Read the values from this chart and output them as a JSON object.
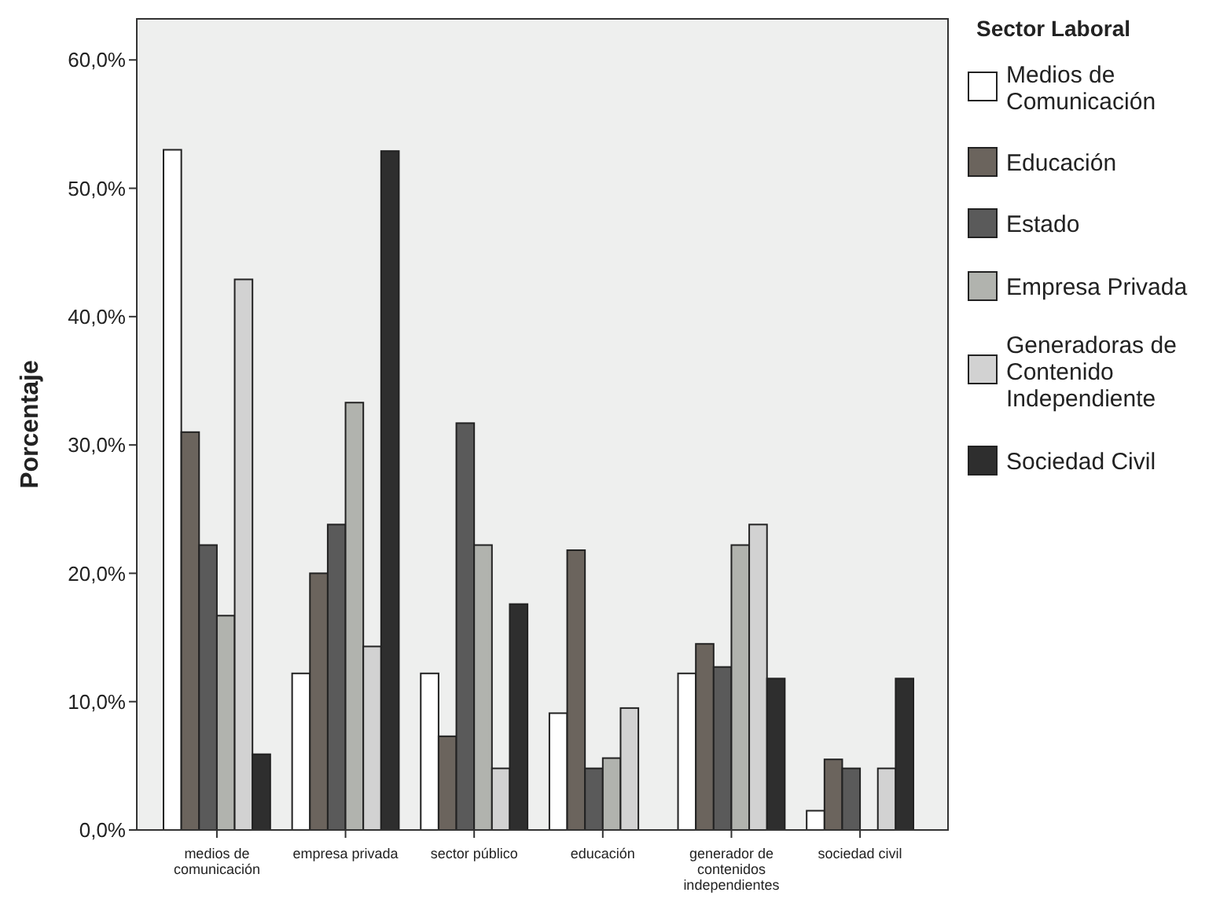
{
  "chart_data": {
    "type": "bar",
    "ylabel": "Porcentaje",
    "legend_title": "Sector Laboral",
    "legend": "right",
    "categories": [
      "medios de comunicación",
      "empresa privada",
      "sector público",
      "educación",
      "generador de contenidos independientes",
      "sociedad civil"
    ],
    "series": [
      {
        "name": "Medios de Comunicación",
        "color": "#ffffff",
        "values": [
          53.0,
          12.2,
          12.2,
          9.1,
          12.2,
          1.5
        ]
      },
      {
        "name": "Educación",
        "color": "#6b645d",
        "values": [
          31.0,
          20.0,
          7.3,
          21.8,
          14.5,
          5.5
        ]
      },
      {
        "name": "Estado",
        "color": "#5a5a5a",
        "values": [
          22.2,
          23.8,
          31.7,
          4.8,
          12.7,
          4.8
        ]
      },
      {
        "name": "Empresa Privada",
        "color": "#b1b3ae",
        "values": [
          16.7,
          33.3,
          22.2,
          5.6,
          22.2,
          0
        ]
      },
      {
        "name": "Generadoras de Contenido Independiente",
        "color": "#d2d2d2",
        "values": [
          42.9,
          14.3,
          4.8,
          9.5,
          23.8,
          4.8
        ]
      },
      {
        "name": "Sociedad Civil",
        "color": "#2e2e2e",
        "values": [
          5.9,
          52.9,
          17.6,
          0,
          11.8,
          11.8
        ]
      }
    ],
    "ylim": [
      0,
      63.2
    ],
    "yticks": [
      {
        "value": 0,
        "label": "0,0%"
      },
      {
        "value": 10,
        "label": "10,0%"
      },
      {
        "value": 20,
        "label": "20,0%"
      },
      {
        "value": 30,
        "label": "30,0%"
      },
      {
        "value": 40,
        "label": "40,0%"
      },
      {
        "value": 50,
        "label": "50,0%"
      },
      {
        "value": 60,
        "label": "60,0%"
      }
    ]
  }
}
